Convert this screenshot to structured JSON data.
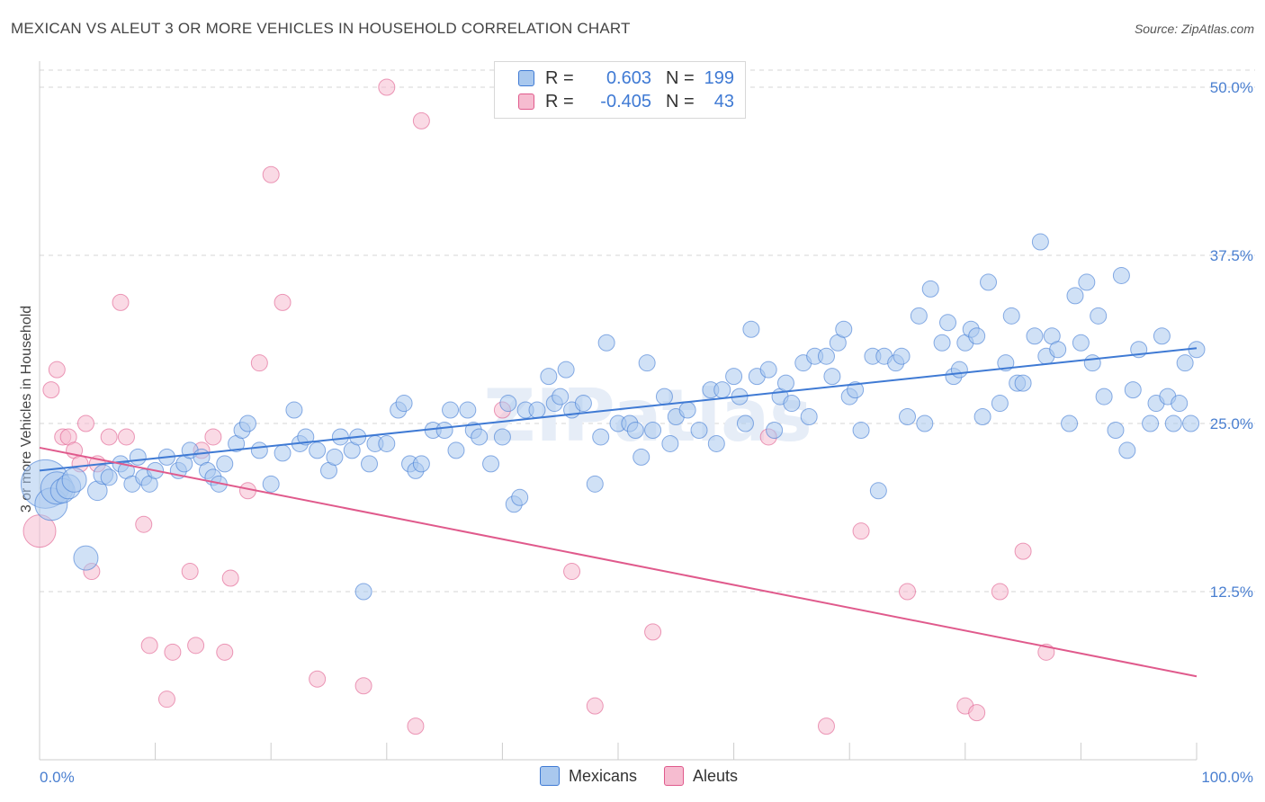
{
  "title": "MEXICAN VS ALEUT 3 OR MORE VEHICLES IN HOUSEHOLD CORRELATION CHART",
  "source": "Source: ZipAtlas.com",
  "watermark": "ZIPatlas",
  "colors": {
    "blue": "#3f7ad4",
    "blue_fill": "#a9c8ee",
    "pink": "#e05a8c",
    "pink_fill": "#f6bcd0",
    "grid": "#d6d6d6",
    "axis_text": "#4a7fd0"
  },
  "legend": {
    "rows": [
      {
        "r_label": "R =",
        "r_value": "0.603",
        "n_label": "N =",
        "n_value": "199"
      },
      {
        "r_label": "R =",
        "r_value": "-0.405",
        "n_label": "N =",
        "n_value": "43"
      }
    ]
  },
  "bottom_legend": [
    "Mexicans",
    "Aleuts"
  ],
  "chart_data": {
    "type": "scatter",
    "title": "MEXICAN VS ALEUT 3 OR MORE VEHICLES IN HOUSEHOLD CORRELATION CHART",
    "xlabel": "",
    "ylabel": "3 or more Vehicles in Household",
    "xlim": [
      0,
      100
    ],
    "ylim": [
      0,
      50
    ],
    "x_tick_labels": [
      "0.0%",
      "100.0%"
    ],
    "y_ticks": [
      12.5,
      25.0,
      37.5,
      50.0
    ],
    "y_tick_labels": [
      "12.5%",
      "25.0%",
      "37.5%",
      "50.0%"
    ],
    "grid": "horizontal dashed",
    "legend_position": "top-center",
    "series": [
      {
        "name": "Mexicans",
        "color": "#3f7ad4",
        "trend": {
          "x": [
            0,
            100
          ],
          "y": [
            21.5,
            30.6
          ]
        },
        "points": [
          [
            0.5,
            20.5,
            3
          ],
          [
            1,
            19,
            2
          ],
          [
            1.5,
            20.2,
            2
          ],
          [
            2,
            20,
            1.5
          ],
          [
            2.5,
            20.3,
            1.5
          ],
          [
            3,
            20.8,
            1.5
          ],
          [
            4,
            15,
            1.5
          ],
          [
            5,
            20,
            1.2
          ],
          [
            5.5,
            21.2,
            1.2
          ],
          [
            6,
            21,
            1
          ],
          [
            7,
            22,
            1
          ],
          [
            7.5,
            21.5,
            1
          ],
          [
            8,
            20.5,
            1
          ],
          [
            8.5,
            22.5,
            1
          ],
          [
            9,
            21,
            1
          ],
          [
            9.5,
            20.5,
            1
          ],
          [
            10,
            21.5,
            1
          ],
          [
            11,
            22.5,
            1
          ],
          [
            12,
            21.5,
            1
          ],
          [
            12.5,
            22,
            1
          ],
          [
            13,
            23,
            1
          ],
          [
            14,
            22.5,
            1
          ],
          [
            14.5,
            21.5,
            1
          ],
          [
            15,
            21,
            1
          ],
          [
            15.5,
            20.5,
            1
          ],
          [
            16,
            22,
            1
          ],
          [
            17,
            23.5,
            1
          ],
          [
            17.5,
            24.5,
            1
          ],
          [
            18,
            25,
            1
          ],
          [
            19,
            23,
            1
          ],
          [
            20,
            20.5,
            1
          ],
          [
            21,
            22.8,
            1
          ],
          [
            22,
            26,
            1
          ],
          [
            22.5,
            23.5,
            1
          ],
          [
            23,
            24,
            1
          ],
          [
            24,
            23,
            1
          ],
          [
            25,
            21.5,
            1
          ],
          [
            25.5,
            22.5,
            1
          ],
          [
            26,
            24,
            1
          ],
          [
            27,
            23,
            1
          ],
          [
            27.5,
            24,
            1
          ],
          [
            28,
            12.5,
            1
          ],
          [
            28.5,
            22,
            1
          ],
          [
            29,
            23.5,
            1
          ],
          [
            30,
            23.5,
            1
          ],
          [
            31,
            26,
            1
          ],
          [
            31.5,
            26.5,
            1
          ],
          [
            32,
            22,
            1
          ],
          [
            32.5,
            21.5,
            1
          ],
          [
            33,
            22,
            1
          ],
          [
            34,
            24.5,
            1
          ],
          [
            35,
            24.5,
            1
          ],
          [
            35.5,
            26,
            1
          ],
          [
            36,
            23,
            1
          ],
          [
            37,
            26,
            1
          ],
          [
            37.5,
            24.5,
            1
          ],
          [
            38,
            24,
            1
          ],
          [
            39,
            22,
            1
          ],
          [
            40,
            24,
            1
          ],
          [
            40.5,
            26.5,
            1
          ],
          [
            41,
            19,
            1
          ],
          [
            41.5,
            19.5,
            1
          ],
          [
            42,
            26,
            1
          ],
          [
            43,
            26,
            1
          ],
          [
            44,
            28.5,
            1
          ],
          [
            44.5,
            26.5,
            1
          ],
          [
            45,
            27,
            1
          ],
          [
            45.5,
            29,
            1
          ],
          [
            46,
            26,
            1
          ],
          [
            47,
            26.5,
            1
          ],
          [
            48,
            20.5,
            1
          ],
          [
            48.5,
            24,
            1
          ],
          [
            49,
            31,
            1
          ],
          [
            50,
            25,
            1
          ],
          [
            51,
            25,
            1
          ],
          [
            51.5,
            24.5,
            1
          ],
          [
            52,
            22.5,
            1
          ],
          [
            52.5,
            29.5,
            1
          ],
          [
            53,
            24.5,
            1
          ],
          [
            54,
            27,
            1
          ],
          [
            54.5,
            23.5,
            1
          ],
          [
            55,
            25.5,
            1
          ],
          [
            56,
            26,
            1
          ],
          [
            57,
            24.5,
            1
          ],
          [
            58,
            27.5,
            1
          ],
          [
            58.5,
            23.5,
            1
          ],
          [
            59,
            27.5,
            1
          ],
          [
            60,
            28.5,
            1
          ],
          [
            60.5,
            27,
            1
          ],
          [
            61,
            25,
            1
          ],
          [
            61.5,
            32,
            1
          ],
          [
            62,
            28.5,
            1
          ],
          [
            63,
            29,
            1
          ],
          [
            63.5,
            24.5,
            1
          ],
          [
            64,
            27,
            1
          ],
          [
            64.5,
            28,
            1
          ],
          [
            65,
            26.5,
            1
          ],
          [
            66,
            29.5,
            1
          ],
          [
            66.5,
            25.5,
            1
          ],
          [
            67,
            30,
            1
          ],
          [
            68,
            30,
            1
          ],
          [
            68.5,
            28.5,
            1
          ],
          [
            69,
            31,
            1
          ],
          [
            69.5,
            32,
            1
          ],
          [
            70,
            27,
            1
          ],
          [
            70.5,
            27.5,
            1
          ],
          [
            71,
            24.5,
            1
          ],
          [
            72,
            30,
            1
          ],
          [
            72.5,
            20,
            1
          ],
          [
            73,
            30,
            1
          ],
          [
            74,
            29.5,
            1
          ],
          [
            74.5,
            30,
            1
          ],
          [
            75,
            25.5,
            1
          ],
          [
            76,
            33,
            1
          ],
          [
            76.5,
            25,
            1
          ],
          [
            77,
            35,
            1
          ],
          [
            78,
            31,
            1
          ],
          [
            78.5,
            32.5,
            1
          ],
          [
            79,
            28.5,
            1
          ],
          [
            79.5,
            29,
            1
          ],
          [
            80,
            31,
            1
          ],
          [
            80.5,
            32,
            1
          ],
          [
            81,
            31.5,
            1
          ],
          [
            81.5,
            25.5,
            1
          ],
          [
            82,
            35.5,
            1
          ],
          [
            83,
            26.5,
            1
          ],
          [
            83.5,
            29.5,
            1
          ],
          [
            84,
            33,
            1
          ],
          [
            84.5,
            28,
            1
          ],
          [
            85,
            28,
            1
          ],
          [
            86,
            31.5,
            1
          ],
          [
            86.5,
            38.5,
            1
          ],
          [
            87,
            30,
            1
          ],
          [
            87.5,
            31.5,
            1
          ],
          [
            88,
            30.5,
            1
          ],
          [
            89,
            25,
            1
          ],
          [
            89.5,
            34.5,
            1
          ],
          [
            90,
            31,
            1
          ],
          [
            90.5,
            35.5,
            1
          ],
          [
            91,
            29.5,
            1
          ],
          [
            91.5,
            33,
            1
          ],
          [
            92,
            27,
            1
          ],
          [
            93,
            24.5,
            1
          ],
          [
            93.5,
            36,
            1
          ],
          [
            94,
            23,
            1
          ],
          [
            94.5,
            27.5,
            1
          ],
          [
            95,
            30.5,
            1
          ],
          [
            96,
            25,
            1
          ],
          [
            96.5,
            26.5,
            1
          ],
          [
            97,
            31.5,
            1
          ],
          [
            97.5,
            27,
            1
          ],
          [
            98,
            25,
            1
          ],
          [
            98.5,
            26.5,
            1
          ],
          [
            99,
            29.5,
            1
          ],
          [
            99.5,
            25,
            1
          ],
          [
            100,
            30.5,
            1
          ]
        ]
      },
      {
        "name": "Aleuts",
        "color": "#e05a8c",
        "trend": {
          "x": [
            0,
            100
          ],
          "y": [
            23.2,
            6.2
          ]
        },
        "points": [
          [
            0,
            17,
            2
          ],
          [
            1,
            27.5,
            1
          ],
          [
            1.5,
            29,
            1
          ],
          [
            2,
            24,
            1
          ],
          [
            2.5,
            24,
            1
          ],
          [
            3,
            23,
            1
          ],
          [
            3.5,
            22,
            1
          ],
          [
            4,
            25,
            1
          ],
          [
            4.5,
            14,
            1
          ],
          [
            5,
            22,
            1
          ],
          [
            6,
            24,
            1
          ],
          [
            7,
            34,
            1
          ],
          [
            7.5,
            24,
            1
          ],
          [
            9,
            17.5,
            1
          ],
          [
            9.5,
            8.5,
            1
          ],
          [
            11,
            4.5,
            1
          ],
          [
            11.5,
            8,
            1
          ],
          [
            13,
            14,
            1
          ],
          [
            13.5,
            8.5,
            1
          ],
          [
            14,
            23,
            1
          ],
          [
            15,
            24,
            1
          ],
          [
            16,
            8,
            1
          ],
          [
            16.5,
            13.5,
            1
          ],
          [
            18,
            20,
            1
          ],
          [
            19,
            29.5,
            1
          ],
          [
            20,
            43.5,
            1
          ],
          [
            21,
            34,
            1
          ],
          [
            24,
            6,
            1
          ],
          [
            28,
            5.5,
            1
          ],
          [
            30,
            50,
            1
          ],
          [
            32.5,
            2.5,
            1
          ],
          [
            33,
            47.5,
            1
          ],
          [
            40,
            26,
            1
          ],
          [
            46,
            14,
            1
          ],
          [
            48,
            4,
            1
          ],
          [
            53,
            9.5,
            1
          ],
          [
            63,
            24,
            1
          ],
          [
            68,
            2.5,
            1
          ],
          [
            71,
            17,
            1
          ],
          [
            75,
            12.5,
            1
          ],
          [
            80,
            4,
            1
          ],
          [
            81,
            3.5,
            1
          ],
          [
            83,
            12.5,
            1
          ],
          [
            85,
            15.5,
            1
          ],
          [
            87,
            8,
            1
          ]
        ]
      }
    ]
  }
}
